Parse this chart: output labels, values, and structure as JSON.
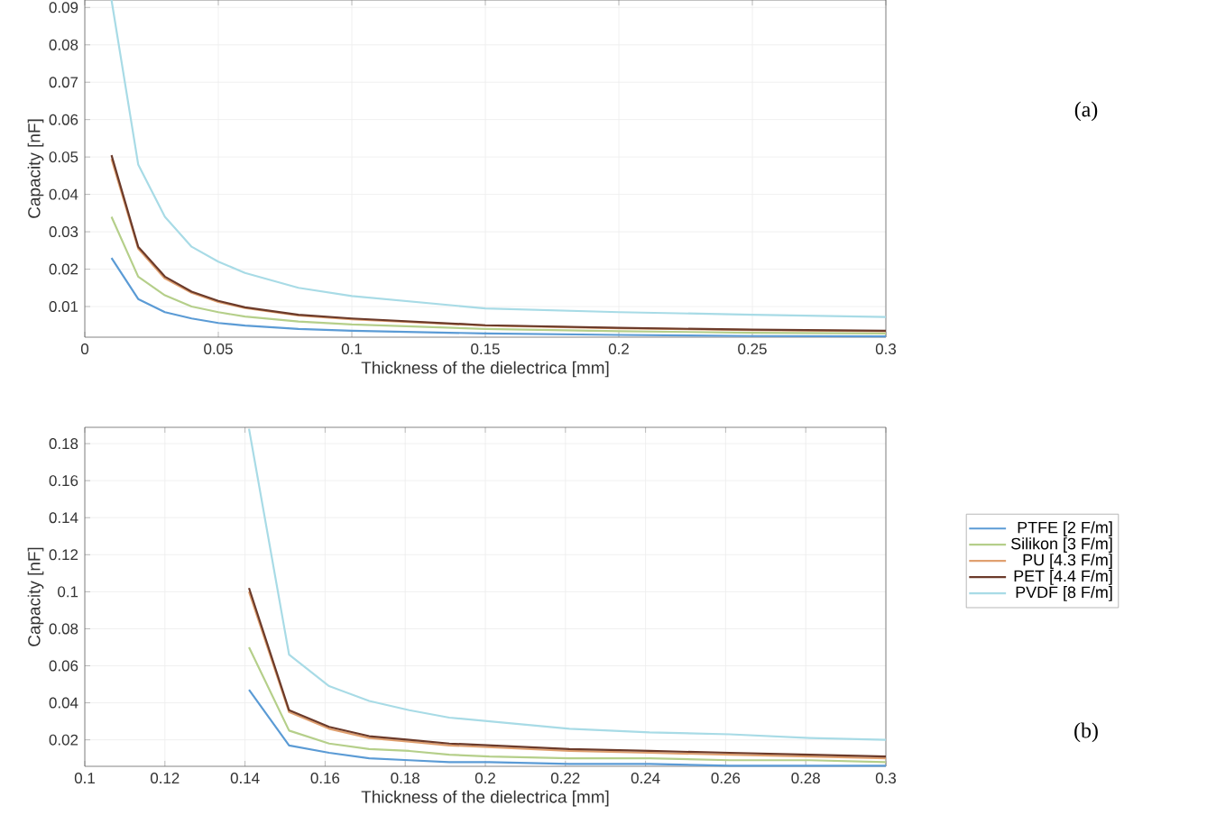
{
  "chart_data": [
    {
      "type": "line",
      "xlabel": "Thickness of the dielectrica [mm]",
      "ylabel": "Capacity [nF]",
      "xlim": [
        0,
        0.3
      ],
      "ylim": [
        0.0018,
        0.092
      ],
      "xticks": [
        0,
        0.05,
        0.1,
        0.15,
        0.2,
        0.25,
        0.3
      ],
      "yticks": [
        0.01,
        0.02,
        0.03,
        0.04,
        0.05,
        0.06,
        0.07,
        0.08,
        0.09
      ],
      "grid": true,
      "annotations": [
        "(a)"
      ],
      "x": [
        0.01,
        0.02,
        0.03,
        0.04,
        0.05,
        0.06,
        0.08,
        0.1,
        0.15,
        0.2,
        0.25,
        0.3
      ],
      "series": [
        {
          "color": "#5b9bd5",
          "values": [
            0.023,
            0.012,
            0.0085,
            0.0068,
            0.0056,
            0.0049,
            0.004,
            0.0035,
            0.0028,
            0.0024,
            0.0021,
            0.002
          ]
        },
        {
          "color": "#b5cf8a",
          "values": [
            0.034,
            0.018,
            0.013,
            0.01,
            0.0085,
            0.0073,
            0.006,
            0.0052,
            0.004,
            0.0034,
            0.003,
            0.0028
          ]
        },
        {
          "color": "#e0a070",
          "values": [
            0.0495,
            0.0255,
            0.0175,
            0.0137,
            0.0112,
            0.0096,
            0.0076,
            0.0066,
            0.0049,
            0.0042,
            0.0037,
            0.0034
          ]
        },
        {
          "color": "#6b3a2a",
          "values": [
            0.0505,
            0.026,
            0.018,
            0.014,
            0.0115,
            0.0098,
            0.0078,
            0.0068,
            0.005,
            0.0043,
            0.0038,
            0.0035
          ]
        },
        {
          "color": "#a8dbe6",
          "values": [
            0.092,
            0.048,
            0.034,
            0.026,
            0.022,
            0.019,
            0.015,
            0.0128,
            0.0095,
            0.0085,
            0.0078,
            0.0072
          ]
        }
      ]
    },
    {
      "type": "line",
      "xlabel": "Thickness of the dielectrica [mm]",
      "ylabel": "Capacity [nF]",
      "xlim": [
        0.1,
        0.3
      ],
      "ylim": [
        0.0057,
        0.1888
      ],
      "xticks": [
        0.1,
        0.12,
        0.14,
        0.16,
        0.18,
        0.2,
        0.22,
        0.24,
        0.26,
        0.28,
        0.3
      ],
      "yticks": [
        0.02,
        0.04,
        0.06,
        0.08,
        0.1,
        0.12,
        0.14,
        0.16,
        0.18
      ],
      "grid": true,
      "legend": "right",
      "annotations": [
        "(b)"
      ],
      "x": [
        0.141,
        0.151,
        0.161,
        0.171,
        0.181,
        0.191,
        0.201,
        0.221,
        0.241,
        0.261,
        0.281,
        0.3
      ],
      "series": [
        {
          "name": "PTFE [2 F/m]",
          "color": "#5b9bd5",
          "values": [
            0.047,
            0.017,
            0.013,
            0.01,
            0.009,
            0.008,
            0.008,
            0.007,
            0.007,
            0.006,
            0.006,
            0.006
          ]
        },
        {
          "name": "Silikon [3 F/m]",
          "color": "#b5cf8a",
          "values": [
            0.07,
            0.025,
            0.018,
            0.015,
            0.014,
            0.012,
            0.011,
            0.01,
            0.01,
            0.009,
            0.009,
            0.008
          ]
        },
        {
          "name": "PU [4.3 F/m]",
          "color": "#e0a070",
          "values": [
            0.1,
            0.035,
            0.026,
            0.021,
            0.019,
            0.017,
            0.016,
            0.014,
            0.013,
            0.012,
            0.011,
            0.01
          ]
        },
        {
          "name": "PET [4.4 F/m]",
          "color": "#6b3a2a",
          "values": [
            0.102,
            0.036,
            0.027,
            0.022,
            0.02,
            0.018,
            0.017,
            0.015,
            0.014,
            0.013,
            0.012,
            0.011
          ]
        },
        {
          "name": "PVDF [8 F/m]",
          "color": "#a8dbe6",
          "values": [
            0.188,
            0.066,
            0.049,
            0.041,
            0.036,
            0.032,
            0.03,
            0.026,
            0.024,
            0.023,
            0.021,
            0.02
          ]
        }
      ]
    }
  ]
}
